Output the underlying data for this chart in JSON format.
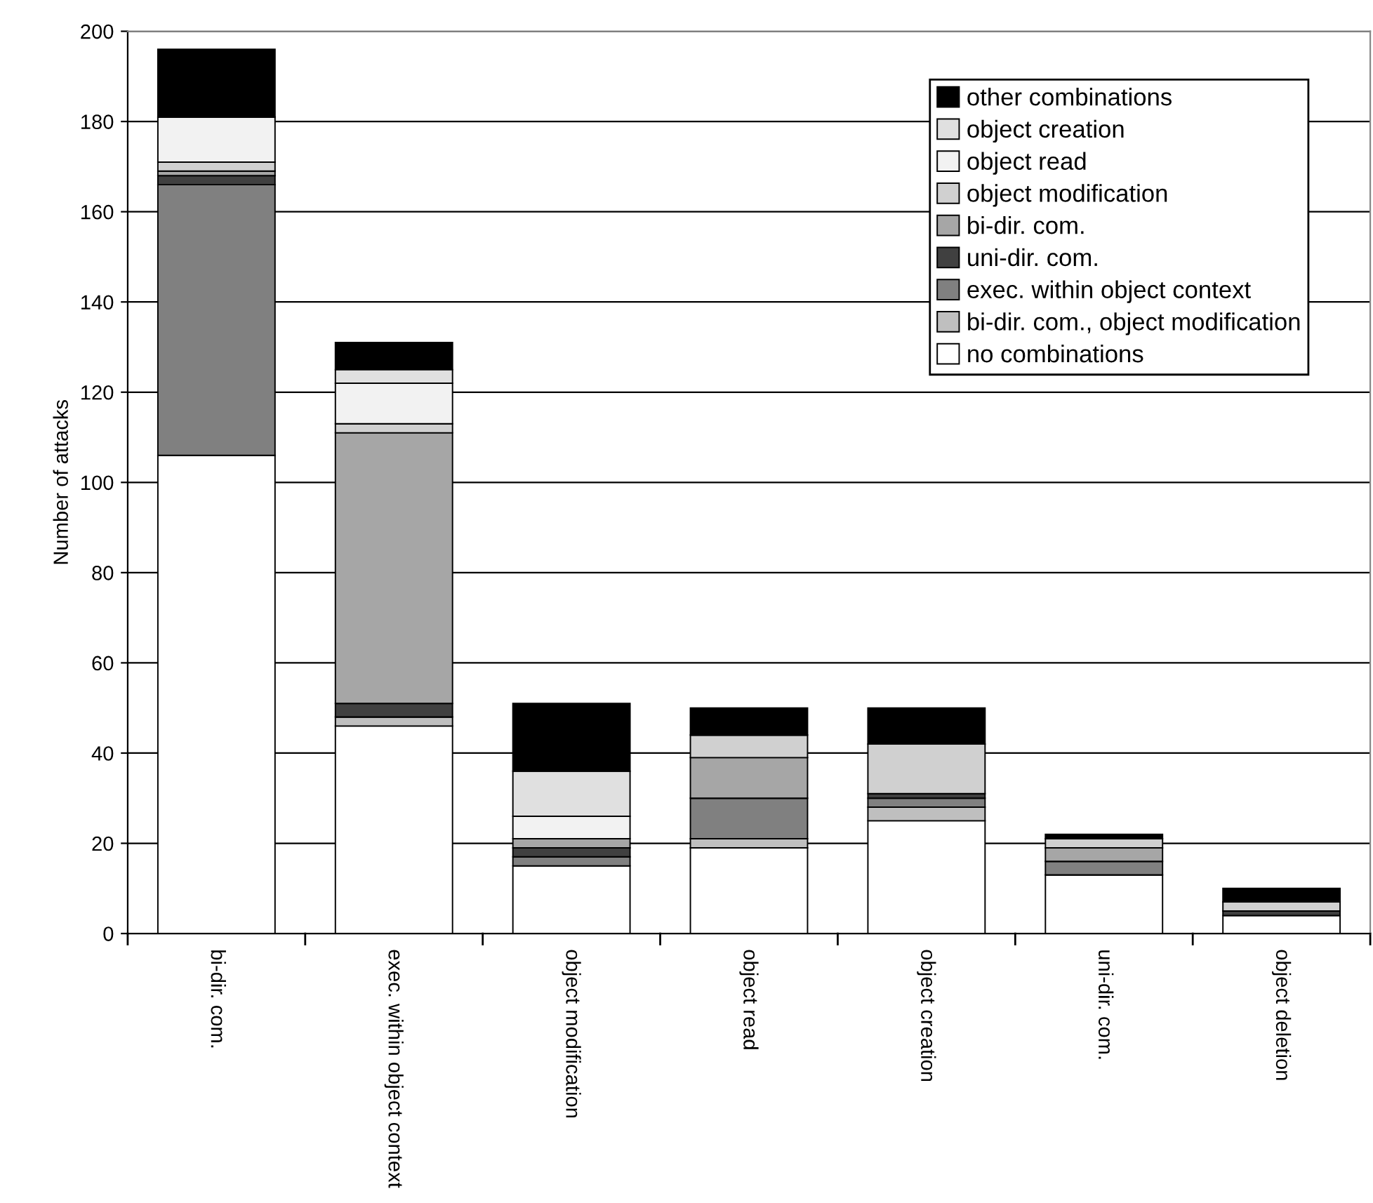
{
  "chart_data": {
    "type": "bar",
    "stacked": true,
    "ylabel": "Number of attacks",
    "categories": [
      "bi-dir. com.",
      "exec. within object context",
      "object modification",
      "object read",
      "object creation",
      "uni-dir. com.",
      "object deletion"
    ],
    "series": [
      {
        "name": "no combinations",
        "color": "#ffffff",
        "values": [
          106,
          46,
          15,
          19,
          25,
          13,
          4
        ]
      },
      {
        "name": "bi-dir. com., object modification",
        "color": "#bfbfbf",
        "values": [
          0,
          2,
          0,
          2,
          3,
          0,
          0
        ]
      },
      {
        "name": "exec. within object context",
        "color": "#808080",
        "values": [
          60,
          0,
          2,
          9,
          2,
          3,
          0
        ]
      },
      {
        "name": "uni-dir. com.",
        "color": "#404040",
        "values": [
          2,
          3,
          2,
          0,
          1,
          0,
          1
        ]
      },
      {
        "name": "bi-dir. com.",
        "color": "#a6a6a6",
        "values": [
          1,
          60,
          2,
          9,
          0,
          3,
          0
        ]
      },
      {
        "name": "object modification",
        "color": "#d0d0d0",
        "values": [
          2,
          2,
          0,
          5,
          11,
          2,
          2
        ]
      },
      {
        "name": "object read",
        "color": "#f2f2f2",
        "values": [
          10,
          9,
          5,
          0,
          0,
          0,
          0
        ]
      },
      {
        "name": "object creation",
        "color": "#e0e0e0",
        "values": [
          0,
          3,
          10,
          0,
          0,
          0,
          0
        ]
      },
      {
        "name": "other combinations",
        "color": "#000000",
        "values": [
          15,
          6,
          15,
          6,
          8,
          1,
          3
        ]
      }
    ],
    "ylim": [
      0,
      200
    ],
    "yticks": [
      0,
      20,
      40,
      60,
      80,
      100,
      120,
      140,
      160,
      180,
      200
    ],
    "grid": "y",
    "legend": "top right"
  }
}
